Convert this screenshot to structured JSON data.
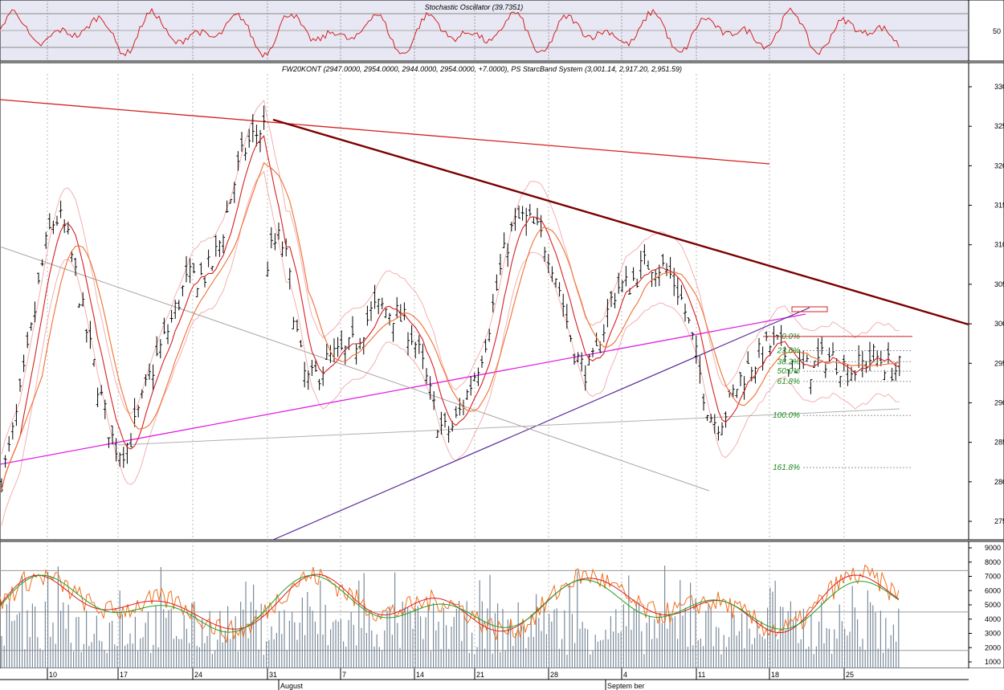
{
  "stoch": {
    "title": "Stochastic Oscillator (39.7351)",
    "tick": "50"
  },
  "main": {
    "title": "FW20KONT (2947.0000, 2954.0000, 2944.0000, 2954.0000, +7.0000), PS StarcBand System  (3,001.14, 2,917.20, 2,951.59)",
    "y_ticks": [
      "3300",
      "3250",
      "3200",
      "3150",
      "3100",
      "3050",
      "3000",
      "2950",
      "2900",
      "2850",
      "2800",
      "2750"
    ]
  },
  "fib": {
    "levels": [
      {
        "label": "0.0%",
        "value": 2984
      },
      {
        "label": "23.6%",
        "value": 2966
      },
      {
        "label": "38.2%",
        "value": 2952
      },
      {
        "label": "50.0%",
        "value": 2940
      },
      {
        "label": "61.8%",
        "value": 2927
      },
      {
        "label": "100.0%",
        "value": 2884
      },
      {
        "label": "161.8%",
        "value": 2818
      }
    ]
  },
  "volume": {
    "y_ticks": [
      "9000",
      "8000",
      "7000",
      "6000",
      "5000",
      "4000",
      "3000",
      "2000",
      "1000"
    ]
  },
  "xaxis": {
    "day_ticks": [
      "10",
      "17",
      "24",
      "31",
      "7",
      "14",
      "21",
      "28",
      "4",
      "11",
      "18",
      "25"
    ],
    "month_labels": [
      "August",
      "Septem ber"
    ]
  },
  "chart_data": [
    {
      "type": "line",
      "title": "Stochastic Oscillator (39.7351)",
      "ylim": [
        0,
        100
      ],
      "reference_lines": [
        20,
        50,
        80
      ],
      "series": [],
      "colors": {
        "line": "#d42020",
        "panel": "#e8e8f4"
      }
    },
    {
      "type": "candlestick",
      "title": "FW20KONT (2947.0000, 2954.0000, 2944.0000, 2954.0000, +7.0000), PS StarcBand System  (3,001.14, 2,917.20, 2,951.59)",
      "ylim": [
        2720,
        3320
      ],
      "last_bar": {
        "open": 2947,
        "high": 2954,
        "low": 2944,
        "close": 2954,
        "change": 7
      },
      "starc_band": {
        "upper": 3001.14,
        "lower": 2917.2,
        "mid": 2951.59
      },
      "x_ticks": [
        "10",
        "17",
        "24",
        "31",
        "7",
        "14",
        "21",
        "28",
        "4",
        "11",
        "18",
        "25"
      ],
      "months": [
        "August",
        "Septem ber"
      ],
      "pivots": [
        {
          "date": "Jul 5",
          "close": 2800
        },
        {
          "date": "Jul 11",
          "close": 3125
        },
        {
          "date": "Jul 17",
          "close": 2848
        },
        {
          "date": "Jul 24",
          "close": 3050
        },
        {
          "date": "Jul 31",
          "close": 3258
        },
        {
          "date": "Aug 7",
          "close": 2975
        },
        {
          "date": "Aug 11",
          "close": 3100
        },
        {
          "date": "Aug 14",
          "close": 2935
        },
        {
          "date": "Aug 22",
          "close": 3020
        },
        {
          "date": "Aug 28",
          "close": 2870
        },
        {
          "date": "Sep 5",
          "close": 3135
        },
        {
          "date": "Sep 11",
          "close": 2945
        },
        {
          "date": "Sep 14",
          "close": 3055
        },
        {
          "date": "Sep 18",
          "close": 3075
        },
        {
          "date": "Sep 23",
          "close": 2885
        },
        {
          "date": "Sep 28",
          "close": 2975
        },
        {
          "date": "Sep 30",
          "close": 2950
        }
      ],
      "fibonacci": [
        {
          "label": "0.0%",
          "value": 2984
        },
        {
          "label": "23.6%",
          "value": 2966
        },
        {
          "label": "38.2%",
          "value": 2952
        },
        {
          "label": "50.0%",
          "value": 2940
        },
        {
          "label": "61.8%",
          "value": 2927
        },
        {
          "label": "100.0%",
          "value": 2884
        },
        {
          "label": "161.8%",
          "value": 2818
        }
      ],
      "colors": {
        "candles": "#000000",
        "ma_fast": "#d42020",
        "ma_slow": "#f07030",
        "band": "#f4b0b0",
        "trend_main": "#7a0000",
        "trend_top": "#d42020",
        "support_magenta": "#e020e0",
        "support_purple": "#5a2a9a",
        "fib": "#1a8a1a"
      }
    },
    {
      "type": "bar",
      "title": "",
      "ylim": [
        500,
        9300
      ],
      "y_ticks": [
        1000,
        2000,
        3000,
        4000,
        5000,
        6000,
        7000,
        8000,
        9000
      ],
      "reference_lines": [
        1800,
        4500,
        7400
      ],
      "series": [],
      "colors": {
        "bars": "#7a8a9a",
        "line_a": "#f07020",
        "line_b": "#d42020",
        "line_c": "#20a020"
      }
    }
  ]
}
